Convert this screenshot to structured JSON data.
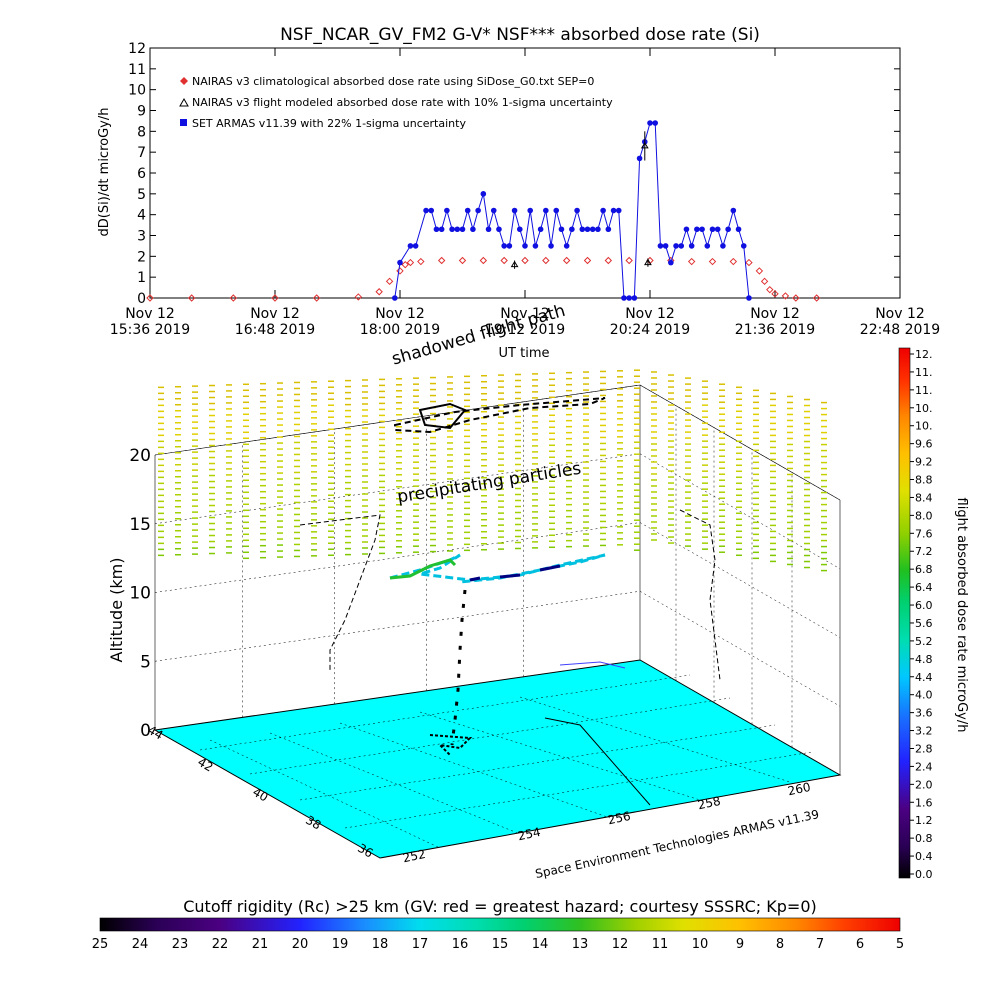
{
  "chart_data": [
    {
      "type": "line",
      "title": "NSF_NCAR_GV_FM2 G-V* NSF*** absorbed dose rate (Si)",
      "ylabel": "dD(Si)/dt microGy/h",
      "xlabel": "UT time",
      "ylim": [
        0,
        12
      ],
      "yticks": [
        "0",
        "1",
        "2",
        "3",
        "4",
        "5",
        "6",
        "7",
        "8",
        "9",
        "10",
        "11",
        "12"
      ],
      "xlim_hours": [
        15.6,
        22.8
      ],
      "xticks": [
        {
          "t": 15.6,
          "l1": "Nov 12",
          "l2": "15:36 2019"
        },
        {
          "t": 16.8,
          "l1": "Nov 12",
          "l2": "16:48 2019"
        },
        {
          "t": 18.0,
          "l1": "Nov 12",
          "l2": "18:00 2019"
        },
        {
          "t": 19.2,
          "l1": "Nov 12",
          "l2": "19:12 2019"
        },
        {
          "t": 20.4,
          "l1": "Nov 12",
          "l2": "20:24 2019"
        },
        {
          "t": 21.6,
          "l1": "Nov 12",
          "l2": "21:36 2019"
        },
        {
          "t": 22.8,
          "l1": "Nov 12",
          "l2": "22:48 2019"
        }
      ],
      "legend_position": "top-left",
      "series": [
        {
          "name": "NAIRAS v3 climatological absorbed dose rate using SiDose_G0.txt SEP=0",
          "color": "#e03030",
          "marker": "diamond",
          "x": [
            15.6,
            16.0,
            16.4,
            16.8,
            17.2,
            17.6,
            17.8,
            17.9,
            18.0,
            18.05,
            18.1,
            18.2,
            18.4,
            18.6,
            18.8,
            19.0,
            19.2,
            19.4,
            19.6,
            19.8,
            20.0,
            20.2,
            20.4,
            20.6,
            20.8,
            21.0,
            21.2,
            21.35,
            21.45,
            21.5,
            21.55,
            21.6,
            21.7,
            21.8,
            22.0
          ],
          "y": [
            0,
            0,
            0,
            0,
            0,
            0.05,
            0.3,
            0.8,
            1.3,
            1.6,
            1.7,
            1.75,
            1.8,
            1.8,
            1.8,
            1.8,
            1.8,
            1.8,
            1.8,
            1.8,
            1.8,
            1.8,
            1.8,
            1.8,
            1.75,
            1.75,
            1.75,
            1.7,
            1.3,
            0.8,
            0.4,
            0.2,
            0.1,
            0,
            0
          ]
        },
        {
          "name": "NAIRAS v3 flight modeled absorbed dose rate with 10% 1-sigma uncertainty",
          "color": "#000000",
          "marker": "triangle",
          "x": [
            19.1,
            20.35,
            20.38
          ],
          "y": [
            1.6,
            7.3,
            1.7
          ],
          "err": [
            0.2,
            0.7,
            0.2
          ]
        },
        {
          "name": "SET ARMAS v11.39 with 22% 1-sigma uncertainty",
          "color": "#1010e0",
          "marker": "circle",
          "x": [
            17.95,
            18.0,
            18.1,
            18.15,
            18.25,
            18.3,
            18.35,
            18.4,
            18.45,
            18.5,
            18.55,
            18.6,
            18.65,
            18.7,
            18.75,
            18.8,
            18.85,
            18.9,
            18.95,
            19.0,
            19.05,
            19.1,
            19.15,
            19.2,
            19.25,
            19.3,
            19.35,
            19.4,
            19.45,
            19.5,
            19.55,
            19.6,
            19.65,
            19.7,
            19.75,
            19.8,
            19.85,
            19.9,
            19.95,
            20.0,
            20.05,
            20.1,
            20.15,
            20.2,
            20.25,
            20.3,
            20.35,
            20.4,
            20.45,
            20.5,
            20.55,
            20.6,
            20.65,
            20.7,
            20.75,
            20.8,
            20.85,
            20.9,
            20.95,
            21.0,
            21.05,
            21.1,
            21.15,
            21.2,
            21.25,
            21.3,
            21.35
          ],
          "y": [
            0,
            1.7,
            2.5,
            2.5,
            4.2,
            4.2,
            3.3,
            3.3,
            4.2,
            3.3,
            3.3,
            3.3,
            4.2,
            3.3,
            4.2,
            5.0,
            3.3,
            4.2,
            3.3,
            2.5,
            2.5,
            4.2,
            3.3,
            2.5,
            4.2,
            2.5,
            3.3,
            4.2,
            2.5,
            4.2,
            3.3,
            2.5,
            3.3,
            4.2,
            3.3,
            3.3,
            3.3,
            3.3,
            4.2,
            3.3,
            4.2,
            4.2,
            0,
            0,
            0,
            6.7,
            7.5,
            8.4,
            8.4,
            2.5,
            2.5,
            1.7,
            2.5,
            2.5,
            3.3,
            2.5,
            3.3,
            3.3,
            2.5,
            3.3,
            3.3,
            2.5,
            3.3,
            4.2,
            3.3,
            2.5,
            0
          ]
        }
      ]
    },
    {
      "type": "scatter",
      "subtitle_lines": [
        "shadowed flight path",
        "precipitating particles"
      ],
      "zlabel": "Altitude (km)",
      "zticks": [
        "0",
        "5",
        "10",
        "15",
        "20"
      ],
      "lat_ticks": [
        "36",
        "38",
        "40",
        "42",
        "44"
      ],
      "lon_ticks": [
        "252",
        "254",
        "256",
        "258",
        "260"
      ],
      "credit": "Space Environment Technologies ARMAS v11.39",
      "colorbar": {
        "label": "flight absorbed dose rate microGy/h",
        "ticks": [
          "12.",
          "11.",
          "11.",
          "10.",
          "10.",
          "9.6",
          "9.2",
          "8.8",
          "8.4",
          "8.0",
          "7.6",
          "7.2",
          "6.8",
          "6.4",
          "6.0",
          "5.6",
          "5.2",
          "4.8",
          "4.4",
          "4.0",
          "3.6",
          "3.2",
          "2.8",
          "2.4",
          "2.0",
          "1.6",
          "1.2",
          "0.8",
          "0.4",
          "0.0"
        ],
        "colors": [
          "#000000",
          "#2a0055",
          "#4b0082",
          "#3a1fb0",
          "#2222ff",
          "#1a6cff",
          "#00aaff",
          "#00ddee",
          "#00ddb0",
          "#00d070",
          "#20c020",
          "#70d000",
          "#b0d000",
          "#e0e000",
          "#ffc000",
          "#ff8800",
          "#ff5000",
          "#ff1010",
          "#ee0000"
        ]
      }
    },
    {
      "type": "heatmap",
      "title": "Cutoff rigidity (Rc) >25 km (GV: red = greatest hazard; courtesy SSSRC; Kp=0)",
      "colorbar_ticks": [
        "25",
        "24",
        "23",
        "22",
        "21",
        "20",
        "19",
        "18",
        "17",
        "16",
        "15",
        "14",
        "13",
        "12",
        "11",
        "10",
        "9",
        "8",
        "7",
        "6",
        "5"
      ],
      "colors": [
        "#000000",
        "#2a0055",
        "#4b0082",
        "#2222ff",
        "#1a6cff",
        "#00aaff",
        "#00ddee",
        "#00ddb0",
        "#00d070",
        "#20c020",
        "#70d000",
        "#b0d000",
        "#e0e000",
        "#ffc000",
        "#ff8800",
        "#ff5000",
        "#ff1010",
        "#ee0000"
      ],
      "ground_color": "#00ffff"
    }
  ]
}
